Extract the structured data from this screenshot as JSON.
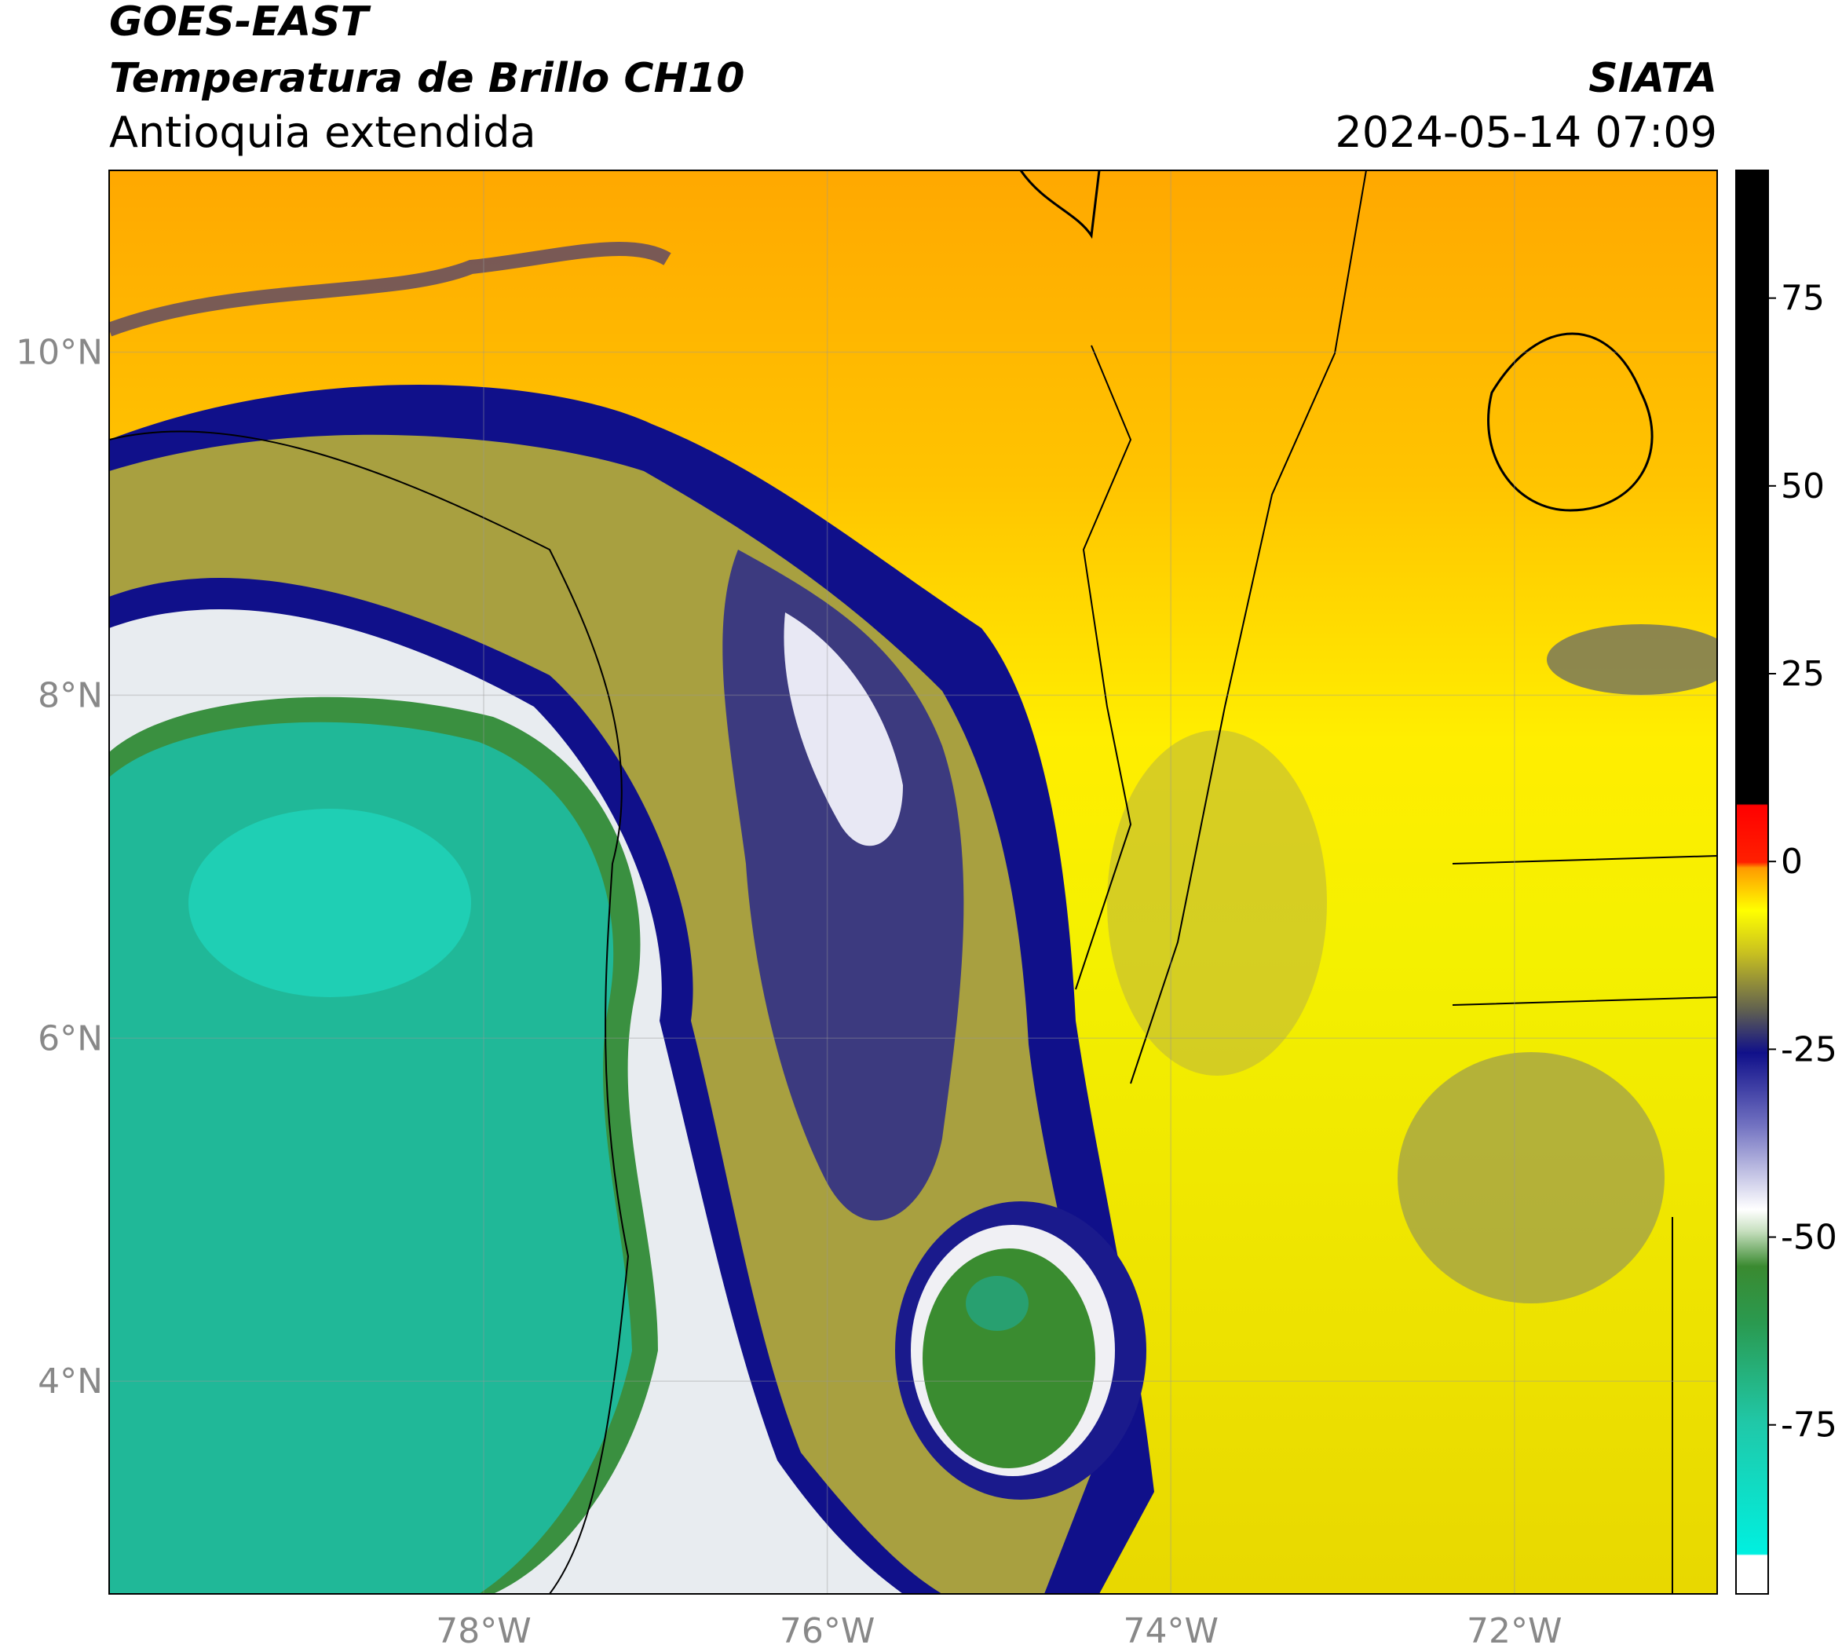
{
  "chart_data": {
    "type": "map",
    "title": "GOES-EAST",
    "subtitle": "Temperatura de Brillo CH10",
    "region": "Antioquia extendida",
    "source": "SIATA",
    "timestamp": "2024-05-14 07:09",
    "xlim": [
      -80.18,
      -70.82
    ],
    "ylim": [
      2.76,
      11.06
    ],
    "xticks": [
      {
        "value": -78,
        "label": "78°W"
      },
      {
        "value": -76,
        "label": "76°W"
      },
      {
        "value": -74,
        "label": "74°W"
      },
      {
        "value": -72,
        "label": "72°W"
      }
    ],
    "yticks": [
      {
        "value": 10,
        "label": "10°N"
      },
      {
        "value": 8,
        "label": "8°N"
      },
      {
        "value": 6,
        "label": "6°N"
      },
      {
        "value": 4,
        "label": "4°N"
      }
    ],
    "grid": true,
    "colorbar": {
      "lim": [
        -97.5,
        92
      ],
      "ticks": [
        75,
        50,
        25,
        0,
        -25,
        -50,
        -75
      ]
    }
  }
}
